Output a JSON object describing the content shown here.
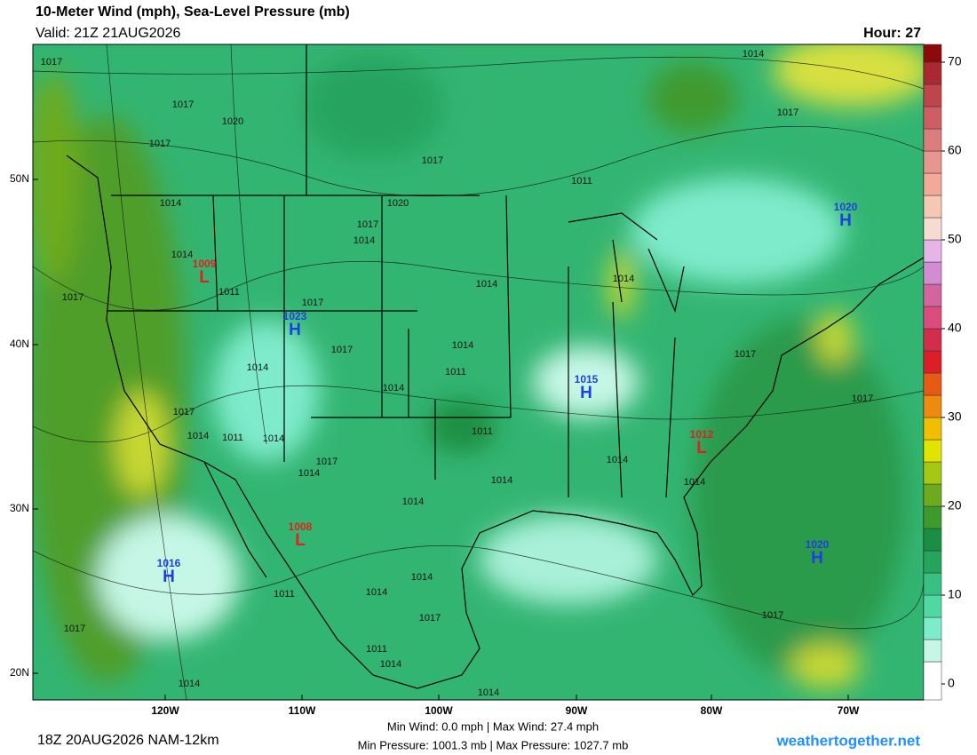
{
  "header": {
    "title": "10-Meter Wind (mph), Sea-Level Pressure (mb)",
    "valid": "Valid: 21Z 21AUG2026",
    "hour": "Hour: 27"
  },
  "map": {
    "lat_labels": [
      "50N",
      "40N",
      "30N",
      "20N"
    ],
    "lon_labels": [
      "120W",
      "110W",
      "100W",
      "90W",
      "80W",
      "70W"
    ],
    "centers": [
      {
        "symbol": "L",
        "value": "1009"
      },
      {
        "symbol": "H",
        "value": "1023"
      },
      {
        "symbol": "H",
        "value": "1015"
      },
      {
        "symbol": "L",
        "value": "1012"
      },
      {
        "symbol": "L",
        "value": "1008"
      },
      {
        "symbol": "H",
        "value": "1016"
      },
      {
        "symbol": "H",
        "value": "1020"
      },
      {
        "symbol": "H",
        "value": "1020"
      }
    ],
    "isobar_labels": [
      "1017",
      "1014",
      "1017",
      "1020",
      "1017",
      "1017",
      "1017",
      "1011",
      "1014",
      "1020",
      "1017",
      "1014",
      "1014",
      "1011",
      "1017",
      "1017",
      "1014",
      "1014",
      "1014",
      "1017",
      "1011",
      "1014",
      "1014",
      "1017",
      "1017",
      "1017",
      "1014",
      "1011",
      "1014",
      "1011",
      "1017",
      "1014",
      "1014",
      "1014",
      "1014",
      "1014",
      "1014",
      "1014",
      "1011",
      "1017",
      "1017",
      "1017",
      "1011",
      "1014",
      "1014",
      "1014"
    ]
  },
  "colorbar": {
    "bins": [
      -1.8,
      2.5,
      5,
      7.5,
      10,
      12.5,
      15,
      17.5,
      20,
      22.5,
      25,
      27.5,
      30,
      32.5,
      35,
      37.5,
      40,
      42.5,
      45,
      47.5,
      50,
      52.5,
      55,
      57.5,
      60,
      62.5,
      65,
      67.5,
      70,
      72
    ],
    "colors": [
      "#ffffff",
      "#c6f7e6",
      "#7eebcb",
      "#4ed9a3",
      "#37c082",
      "#25a45e",
      "#1a8f43",
      "#3f9a2d",
      "#6eaa1e",
      "#a6c814",
      "#e0e400",
      "#f0c000",
      "#ee8a10",
      "#e65a14",
      "#dc1e28",
      "#d22d4b",
      "#dc4b7d",
      "#d264a0",
      "#d28cd2",
      "#e6b4e6",
      "#f5dcd2",
      "#f5c8b4",
      "#f0aa96",
      "#e6968c",
      "#dc7d7d",
      "#cd5f64",
      "#be464b",
      "#aa2832",
      "#8c0a0a"
    ],
    "ticks": [
      0,
      10,
      20,
      30,
      40,
      50,
      60,
      70
    ]
  },
  "footer": {
    "run": "18Z 20AUG2026 NAM-12km",
    "wind": "Min Wind: 0.0 mph | Max Wind: 27.4 mph",
    "pressure": "Min Pressure: 1001.3 mb | Max Pressure: 1027.7 mb",
    "site": "weathertogether.net"
  }
}
